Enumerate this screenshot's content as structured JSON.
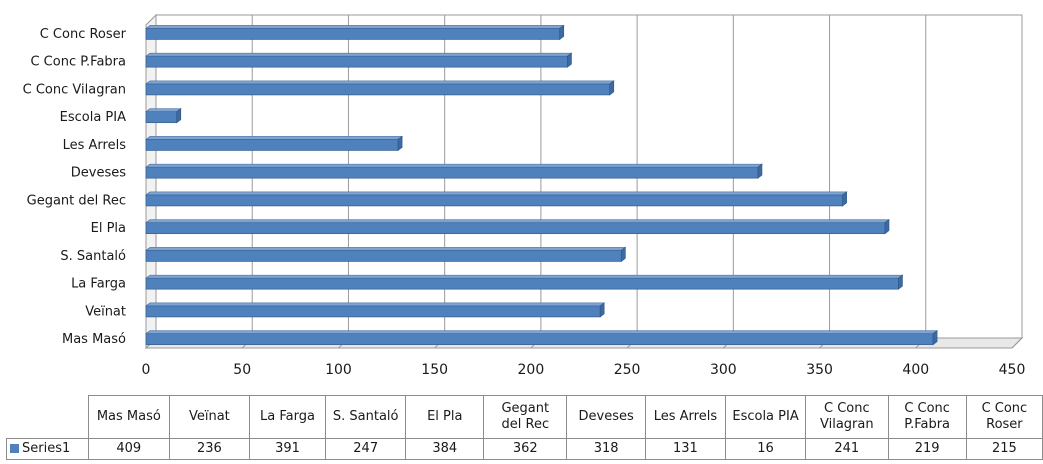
{
  "chart_data": {
    "type": "bar",
    "orientation": "horizontal",
    "categories": [
      "Mas Masó",
      "Veïnat",
      "La Farga",
      "S. Santaló",
      "El Pla",
      "Gegant del Rec",
      "Deveses",
      "Les Arrels",
      "Escola PIA",
      "C Conc Vilagran",
      "C Conc P.Fabra",
      "C Conc Roser"
    ],
    "table_headers": [
      [
        "Mas Masó"
      ],
      [
        "Veïnat"
      ],
      [
        "La Farga"
      ],
      [
        "S. Santaló"
      ],
      [
        "El Pla"
      ],
      [
        "Gegant",
        "del Rec"
      ],
      [
        "Deveses"
      ],
      [
        "Les Arrels"
      ],
      [
        "Escola PIA"
      ],
      [
        "C Conc",
        "Vilagran"
      ],
      [
        "C Conc",
        "P.Fabra"
      ],
      [
        "C Conc",
        "Roser"
      ]
    ],
    "series": [
      {
        "name": "Series1",
        "values": [
          409,
          236,
          391,
          247,
          384,
          362,
          318,
          131,
          16,
          241,
          219,
          215
        ]
      }
    ],
    "xlim": [
      0,
      450
    ],
    "xticks": [
      0,
      50,
      100,
      150,
      200,
      250,
      300,
      350,
      400,
      450
    ],
    "grid": true,
    "bar_color": "#4f81bd",
    "legend": "data table"
  }
}
